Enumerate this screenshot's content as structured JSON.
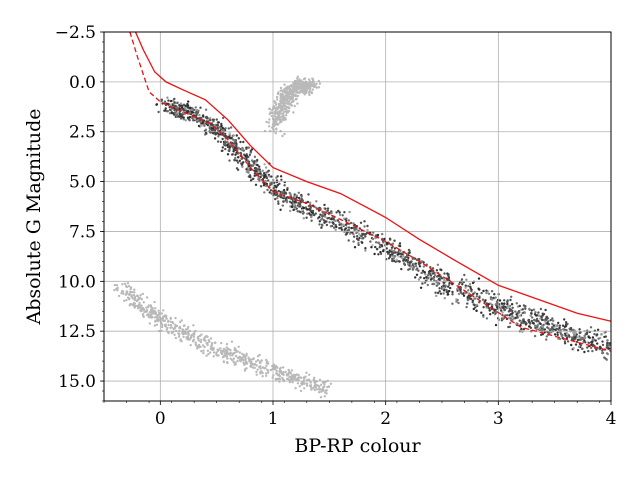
{
  "chart_data": {
    "type": "scatter",
    "title": "",
    "xlabel": "BP-RP colour",
    "ylabel": "Absolute G Magnitude",
    "xlim": [
      -0.5,
      4
    ],
    "ylim": [
      16,
      -2.5
    ],
    "y_inverted": true,
    "grid": true,
    "x_ticks": [
      0,
      1,
      2,
      3,
      4
    ],
    "x_tick_labels": [
      "0",
      "1",
      "2",
      "3",
      "4"
    ],
    "y_ticks": [
      -2.5,
      0,
      2.5,
      5,
      7.5,
      10,
      12.5,
      15
    ],
    "y_tick_labels": [
      "−2.5",
      "0.0",
      "2.5",
      "5.0",
      "7.5",
      "10.0",
      "12.5",
      "15.0"
    ],
    "density_regions": [
      {
        "name": "main-sequence",
        "ridge": [
          [
            0.05,
            1.2
          ],
          [
            0.3,
            1.6
          ],
          [
            0.55,
            2.6
          ],
          [
            0.8,
            4.2
          ],
          [
            1.1,
            5.8
          ],
          [
            1.5,
            6.8
          ],
          [
            2.0,
            8.3
          ],
          [
            2.4,
            9.7
          ],
          [
            2.8,
            10.8
          ],
          [
            3.2,
            11.8
          ],
          [
            3.6,
            12.6
          ],
          [
            4.0,
            13.3
          ]
        ],
        "width": [
          0.6,
          0.6,
          0.7,
          0.8,
          0.8,
          0.9,
          0.9,
          1.0,
          1.0,
          1.0,
          0.9,
          0.8
        ],
        "color": "#1a1a1a"
      },
      {
        "name": "red-clump",
        "ridge": [
          [
            1.0,
            2.2
          ],
          [
            1.1,
            1.0
          ],
          [
            1.2,
            0.3
          ],
          [
            1.35,
            0.2
          ]
        ],
        "width": [
          1.0,
          0.8,
          0.6,
          0.5
        ],
        "color": "#b0b0b0"
      },
      {
        "name": "white-dwarf-sequence",
        "ridge": [
          [
            -0.35,
            10.3
          ],
          [
            0.0,
            12.0
          ],
          [
            0.5,
            13.5
          ],
          [
            1.0,
            14.5
          ],
          [
            1.5,
            15.4
          ]
        ],
        "width": [
          0.5,
          0.7,
          0.7,
          0.6,
          0.4
        ],
        "color": "#b0b0b0"
      }
    ],
    "series": [
      {
        "style": "solid",
        "color": "#ee1111",
        "points": [
          [
            -0.22,
            -2.5
          ],
          [
            -0.15,
            -1.6
          ],
          [
            -0.05,
            -0.5
          ],
          [
            0.05,
            0.0
          ],
          [
            0.2,
            0.4
          ],
          [
            0.4,
            0.9
          ],
          [
            0.6,
            1.9
          ],
          [
            0.8,
            3.2
          ],
          [
            1.0,
            4.3
          ],
          [
            1.3,
            5.0
          ],
          [
            1.6,
            5.6
          ],
          [
            2.0,
            6.8
          ],
          [
            2.3,
            7.9
          ],
          [
            2.6,
            8.9
          ],
          [
            3.0,
            10.2
          ],
          [
            3.4,
            11.0
          ],
          [
            3.7,
            11.6
          ],
          [
            4.0,
            12.0
          ]
        ]
      },
      {
        "style": "dashed",
        "color": "#ee1111",
        "points": [
          [
            -0.27,
            -2.5
          ],
          [
            -0.2,
            -1.2
          ],
          [
            -0.1,
            0.5
          ],
          [
            0.0,
            1.0
          ],
          [
            0.2,
            1.5
          ],
          [
            0.45,
            2.1
          ],
          [
            0.6,
            2.9
          ],
          [
            0.8,
            4.3
          ],
          [
            1.0,
            5.5
          ],
          [
            1.3,
            6.1
          ],
          [
            1.6,
            6.9
          ],
          [
            2.0,
            8.0
          ],
          [
            2.3,
            9.0
          ],
          [
            2.6,
            10.1
          ],
          [
            2.9,
            11.2
          ],
          [
            3.2,
            12.3
          ],
          [
            3.6,
            12.9
          ],
          [
            4.0,
            13.5
          ]
        ]
      }
    ]
  }
}
